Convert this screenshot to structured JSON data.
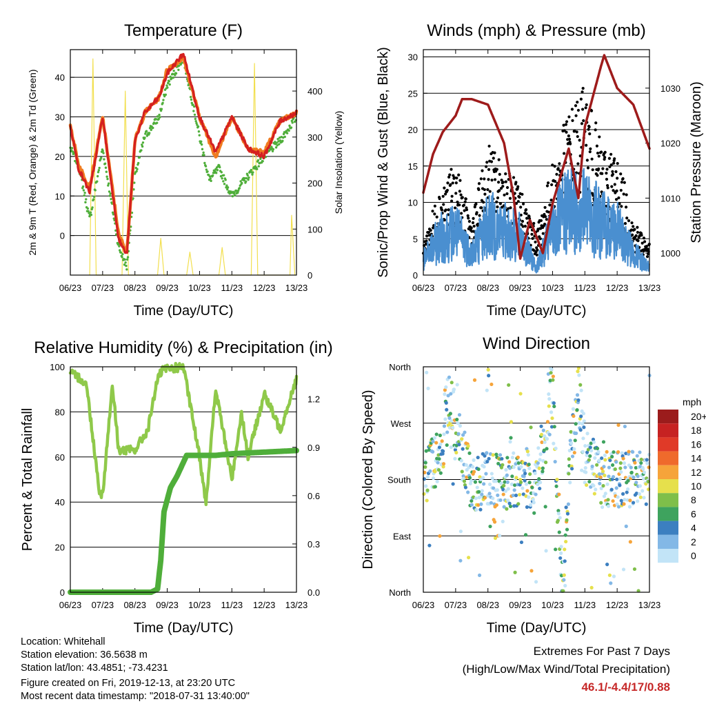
{
  "chart_data": [
    {
      "type": "line",
      "title": "Temperature (F)",
      "xlabel": "Time (Day/UTC)",
      "ylabel": "2m & 9m T (Red, Orange) & 2m Td (Green)",
      "y2label": "Solar Insolation (Yellow)",
      "x_ticks": [
        "06/23",
        "07/23",
        "08/23",
        "09/23",
        "10/23",
        "11/23",
        "12/23",
        "13/23"
      ],
      "ylim": [
        -10,
        47
      ],
      "y_ticks": [
        0,
        10,
        20,
        30,
        40
      ],
      "y2lim": [
        0,
        490
      ],
      "y2_ticks": [
        0,
        100,
        200,
        300,
        400
      ],
      "grid": true,
      "series": [
        {
          "color": "#f07b20",
          "x": [
            0,
            0.25,
            0.6,
            1.0,
            1.5,
            1.75,
            2.0,
            2.3,
            2.75,
            3.0,
            3.5,
            4.0,
            4.5,
            5.0,
            5.5,
            6.0,
            6.5,
            7.0
          ],
          "values": [
            28,
            18,
            12,
            30,
            0,
            -4,
            24,
            31,
            35,
            42,
            45,
            30,
            20,
            30,
            22,
            21,
            29,
            31
          ]
        },
        {
          "color": "#d42020",
          "x": [
            0,
            0.25,
            0.6,
            1.0,
            1.5,
            1.75,
            2.0,
            2.3,
            2.75,
            3.0,
            3.5,
            4.0,
            4.5,
            5.0,
            5.5,
            6.0,
            6.5,
            7.0
          ],
          "values": [
            28,
            17,
            11,
            30,
            -1,
            -5,
            24,
            31,
            35,
            41,
            46,
            30,
            21,
            30,
            22,
            20,
            29,
            31
          ]
        },
        {
          "color": "#4fae3a",
          "x": [
            0,
            0.25,
            0.6,
            1.0,
            1.5,
            1.75,
            2.0,
            2.3,
            2.75,
            3.0,
            3.5,
            4.0,
            4.3,
            4.6,
            5.0,
            5.5,
            6.0,
            6.5,
            7.0
          ],
          "values": [
            22,
            18,
            4,
            22,
            -3,
            -8,
            15,
            25,
            30,
            38,
            45,
            25,
            14,
            17,
            10,
            15,
            20,
            24,
            30
          ]
        },
        {
          "color": "#f2df4e",
          "x": [
            0.6,
            0.7,
            0.8,
            1.6,
            1.7,
            1.8,
            2.7,
            2.8,
            2.9,
            3.6,
            3.7,
            3.8,
            4.6,
            4.7,
            4.8,
            5.6,
            5.7,
            5.8,
            6.8,
            6.85,
            6.95
          ],
          "values": [
            0,
            470,
            0,
            0,
            400,
            0,
            0,
            80,
            0,
            0,
            50,
            0,
            0,
            60,
            0,
            0,
            460,
            0,
            0,
            130,
            0
          ]
        }
      ]
    },
    {
      "type": "scatter",
      "title": "Winds (mph) & Pressure (mb)",
      "xlabel": "Time (Day/UTC)",
      "ylabel": "Sonic/Prop Wind & Gust (Blue, Black)",
      "y2label": "Station Pressure (Maroon)",
      "x_ticks": [
        "06/23",
        "07/23",
        "08/23",
        "09/23",
        "10/23",
        "11/23",
        "12/23",
        "13/23"
      ],
      "ylim": [
        0,
        31
      ],
      "y_ticks": [
        0,
        5,
        10,
        15,
        20,
        25,
        30
      ],
      "y2lim": [
        996,
        1037
      ],
      "y2_ticks": [
        1000,
        1010,
        1020,
        1030
      ],
      "grid": true,
      "series": [
        {
          "color": "#000000",
          "x": [
            0,
            0.5,
            1.0,
            1.5,
            2.0,
            2.5,
            3.0,
            3.5,
            4.0,
            4.5,
            5.0,
            5.5,
            6.0,
            6.5,
            7.0
          ],
          "values": [
            3,
            8,
            10,
            5,
            12,
            10,
            8,
            4,
            10,
            15,
            17,
            12,
            11,
            5,
            3
          ]
        },
        {
          "color": "#4a8fd0",
          "x": [
            0,
            0.5,
            1.0,
            1.5,
            2.0,
            2.5,
            3.0,
            3.5,
            4.0,
            4.5,
            5.0,
            5.5,
            6.0,
            6.5,
            7.0
          ],
          "values": [
            2,
            5,
            6,
            3,
            7,
            6,
            5,
            1,
            6,
            9,
            9,
            7,
            6,
            3,
            1
          ]
        },
        {
          "color": "#9e1b1b",
          "x": [
            0,
            0.3,
            0.6,
            1.0,
            1.2,
            1.5,
            2.0,
            2.5,
            2.8,
            3.0,
            3.3,
            3.7,
            4.0,
            4.5,
            4.8,
            5.0,
            5.5,
            5.6,
            6.0,
            6.5,
            7.0
          ],
          "values": [
            1011,
            1018,
            1022,
            1025,
            1028,
            1028,
            1027,
            1020,
            1010,
            999,
            1006,
            1000,
            1009,
            1019,
            1010,
            1023,
            1034,
            1036,
            1030,
            1027,
            1019
          ]
        }
      ]
    },
    {
      "type": "line",
      "title": "Relative Humidity (%) & Precipitation (in)",
      "xlabel": "Time (Day/UTC)",
      "ylabel": "Percent & Total Rainfall",
      "x_ticks": [
        "06/23",
        "07/23",
        "08/23",
        "09/23",
        "10/23",
        "11/23",
        "12/23",
        "13/23"
      ],
      "ylim": [
        0,
        100
      ],
      "y_ticks": [
        0,
        20,
        40,
        60,
        80,
        100
      ],
      "y2lim": [
        0,
        1.4
      ],
      "y2_ticks": [
        "0.0",
        "0.3",
        "0.6",
        "0.9",
        "1.2"
      ],
      "grid": true,
      "series": [
        {
          "color": "#8fc94a",
          "x": [
            0,
            0.3,
            0.5,
            0.9,
            1.0,
            1.3,
            1.5,
            2.0,
            2.4,
            2.7,
            2.9,
            3.0,
            3.5,
            4.0,
            4.2,
            4.5,
            5.0,
            5.3,
            5.5,
            6.0,
            6.5,
            7.0
          ],
          "values": [
            97,
            95,
            92,
            45,
            43,
            92,
            63,
            63,
            72,
            95,
            99,
            99,
            100,
            60,
            40,
            90,
            50,
            80,
            60,
            88,
            72,
            95
          ]
        },
        {
          "color": "#4fae3a",
          "x": [
            0,
            1.0,
            2.5,
            2.7,
            2.8,
            2.9,
            3.1,
            3.3,
            3.6,
            4.0,
            4.5,
            5.0,
            6.0,
            7.0
          ],
          "values": [
            0,
            0,
            0,
            0.02,
            0.2,
            0.5,
            0.65,
            0.72,
            0.85,
            0.85,
            0.85,
            0.86,
            0.87,
            0.88
          ]
        }
      ]
    },
    {
      "type": "scatter",
      "title": "Wind Direction",
      "xlabel": "Time (Day/UTC)",
      "ylabel": "Direction (Colored By Speed)",
      "x_ticks": [
        "06/23",
        "07/23",
        "08/23",
        "09/23",
        "10/23",
        "11/23",
        "12/23",
        "13/23"
      ],
      "y_ticks": [
        "North",
        "East",
        "South",
        "West",
        "North"
      ],
      "ylim": [
        0,
        360
      ],
      "grid": true,
      "legend_title": "mph",
      "legend_labels": [
        "20+",
        "18",
        "16",
        "14",
        "12",
        "10",
        "8",
        "6",
        "4",
        "2",
        "0"
      ],
      "legend_colors": [
        "#9b1c1c",
        "#c62222",
        "#e03a28",
        "#ef6a2c",
        "#f6a43a",
        "#e6e04c",
        "#7fbf4a",
        "#3ea35e",
        "#3c7fc0",
        "#83b8e6",
        "#c2e4f7"
      ],
      "series": [
        {
          "x": [
            0,
            0.5,
            0.8,
            1.5,
            2.0,
            2.5,
            3.0,
            3.5,
            4.0,
            4.3,
            4.5,
            4.8,
            5.0,
            5.5,
            6.0,
            6.5,
            7.0
          ],
          "values": [
            180,
            220,
            300,
            170,
            180,
            175,
            180,
            180,
            320,
            20,
            180,
            330,
            220,
            180,
            180,
            180,
            200
          ]
        }
      ]
    }
  ],
  "info": {
    "location": "Location: Whitehall",
    "elevation": "Station elevation: 36.5638 m",
    "latlon": "Station lat/lon: 43.4851; -73.4231",
    "created": "Figure created on Fri, 2019-12-13, at 23:20 UTC",
    "recent": "Most recent data timestamp: \"2018-07-31 13:40:00\""
  },
  "extremes": {
    "line1": "Extremes For Past 7 Days",
    "line2": "(High/Low/Max Wind/Total Precipitation)",
    "values": "46.1/-4.4/17/0.88",
    "values_color": "#c62828"
  }
}
